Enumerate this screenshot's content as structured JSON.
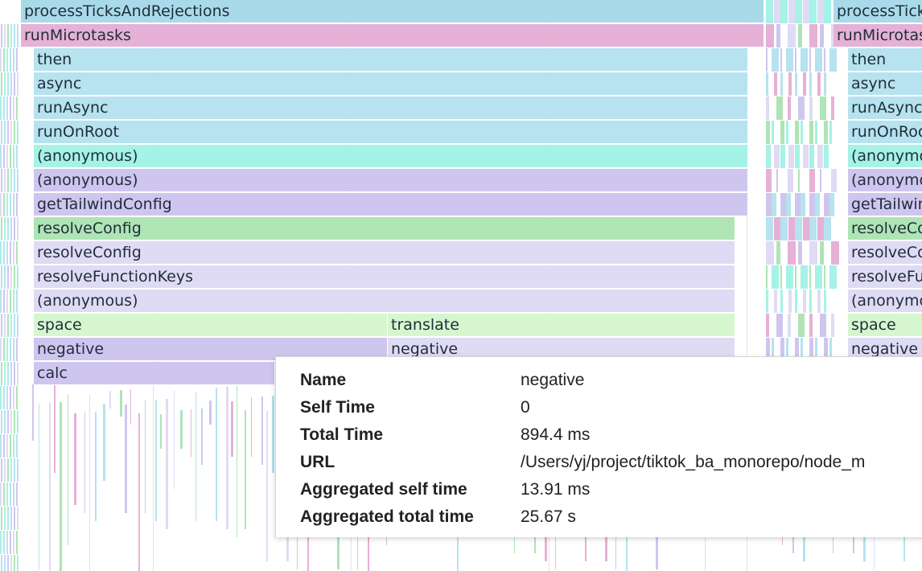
{
  "colors": {
    "blue": "#b7e2ef",
    "pink": "#e6b1d6",
    "teal": "#a5f2e6",
    "purple": "#cfc6ef",
    "lavender": "#e0dbf4",
    "green": "#afe4b5",
    "lightgreen": "#d6f6cf",
    "blueDeep": "#a9daea"
  },
  "flame": {
    "mainStack": [
      {
        "label": "processTicksAndRejections",
        "color": "blueDeep"
      },
      {
        "label": "runMicrotasks",
        "color": "pink"
      },
      {
        "label": "then",
        "color": "blue"
      },
      {
        "label": "async",
        "color": "blue"
      },
      {
        "label": "runAsync",
        "color": "blue"
      },
      {
        "label": "runOnRoot",
        "color": "blue"
      },
      {
        "label": "(anonymous)",
        "color": "teal"
      },
      {
        "label": "(anonymous)",
        "color": "purple"
      },
      {
        "label": "getTailwindConfig",
        "color": "purple"
      },
      {
        "label": "resolveConfig",
        "color": "green"
      },
      {
        "label": "resolveConfig",
        "color": "lavender"
      },
      {
        "label": "resolveFunctionKeys",
        "color": "lavender"
      },
      {
        "label": "(anonymous)",
        "color": "lavender"
      },
      {
        "label": "space",
        "color": "lightgreen"
      },
      {
        "label": "negative",
        "color": "purple"
      },
      {
        "label": "calc",
        "color": "purple"
      }
    ],
    "secondStack": [
      {
        "label": "translate",
        "color": "lightgreen"
      },
      {
        "label": "negative",
        "color": "lavender"
      }
    ],
    "rightStack": [
      {
        "label": "processTicksAndRejections",
        "color": "blueDeep"
      },
      {
        "label": "runMicrotasks",
        "color": "pink"
      },
      {
        "label": "then",
        "color": "blue"
      },
      {
        "label": "async",
        "color": "blue"
      },
      {
        "label": "runAsync",
        "color": "blue"
      },
      {
        "label": "runOnRoot",
        "color": "blue"
      },
      {
        "label": "(anonymous)",
        "color": "teal"
      },
      {
        "label": "(anonymous)",
        "color": "purple"
      },
      {
        "label": "getTailwindConfig",
        "color": "purple"
      },
      {
        "label": "resolveConfig",
        "color": "green"
      },
      {
        "label": "resolveConfig",
        "color": "lavender"
      },
      {
        "label": "resolveFunctionKeys",
        "color": "lavender"
      },
      {
        "label": "(anonymous)",
        "color": "lavender"
      },
      {
        "label": "space",
        "color": "lightgreen"
      },
      {
        "label": "negative",
        "color": "lavender"
      }
    ]
  },
  "tooltip": {
    "rows": [
      {
        "key": "Name",
        "value": "negative"
      },
      {
        "key": "Self Time",
        "value": "0"
      },
      {
        "key": "Total Time",
        "value": "894.4 ms"
      },
      {
        "key": "URL",
        "value": "/Users/yj/project/tiktok_ba_monorepo/node_m"
      },
      {
        "key": "Aggregated self time",
        "value": "13.91 ms"
      },
      {
        "key": "Aggregated total time",
        "value": "25.67 s"
      }
    ]
  }
}
